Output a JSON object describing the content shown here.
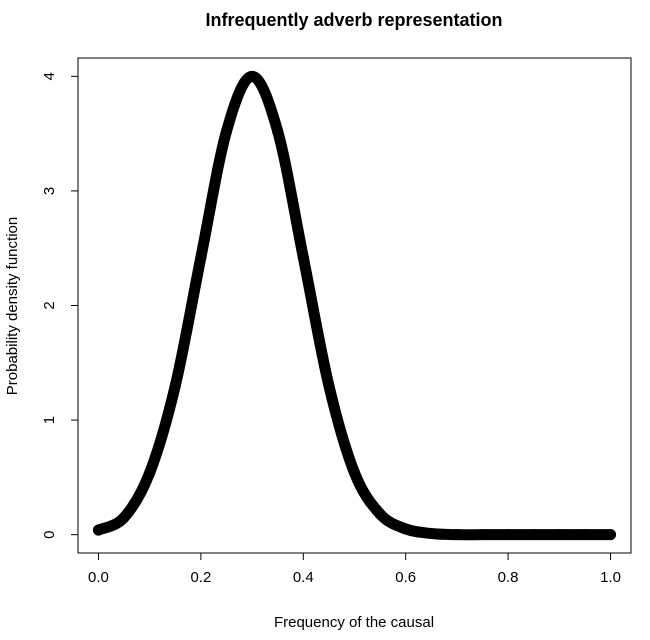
{
  "chart_data": {
    "type": "line",
    "title": "Infrequently adverb representation",
    "xlabel": "Frequency of the causal",
    "ylabel": "Probability density function",
    "xlim": [
      -0.04,
      1.04
    ],
    "ylim": [
      -0.16,
      4.16
    ],
    "x_ticks": [
      "0.0",
      "0.2",
      "0.4",
      "0.6",
      "0.8",
      "1.0"
    ],
    "y_ticks": [
      "0",
      "1",
      "2",
      "3",
      "4"
    ],
    "grid": false,
    "legend": "none",
    "line_color": "#000000",
    "series": [
      {
        "x": [
          0.0,
          0.05,
          0.1,
          0.15,
          0.2,
          0.25,
          0.3,
          0.35,
          0.4,
          0.45,
          0.5,
          0.55,
          0.6,
          0.65,
          0.7,
          0.75,
          0.8,
          0.85,
          0.9,
          0.95,
          1.0
        ],
        "values": [
          0.04,
          0.15,
          0.54,
          1.3,
          2.42,
          3.52,
          4.0,
          3.52,
          2.42,
          1.3,
          0.54,
          0.18,
          0.05,
          0.01,
          0.0,
          0.0,
          0.0,
          0.0,
          0.0,
          0.0,
          0.0
        ]
      }
    ]
  }
}
